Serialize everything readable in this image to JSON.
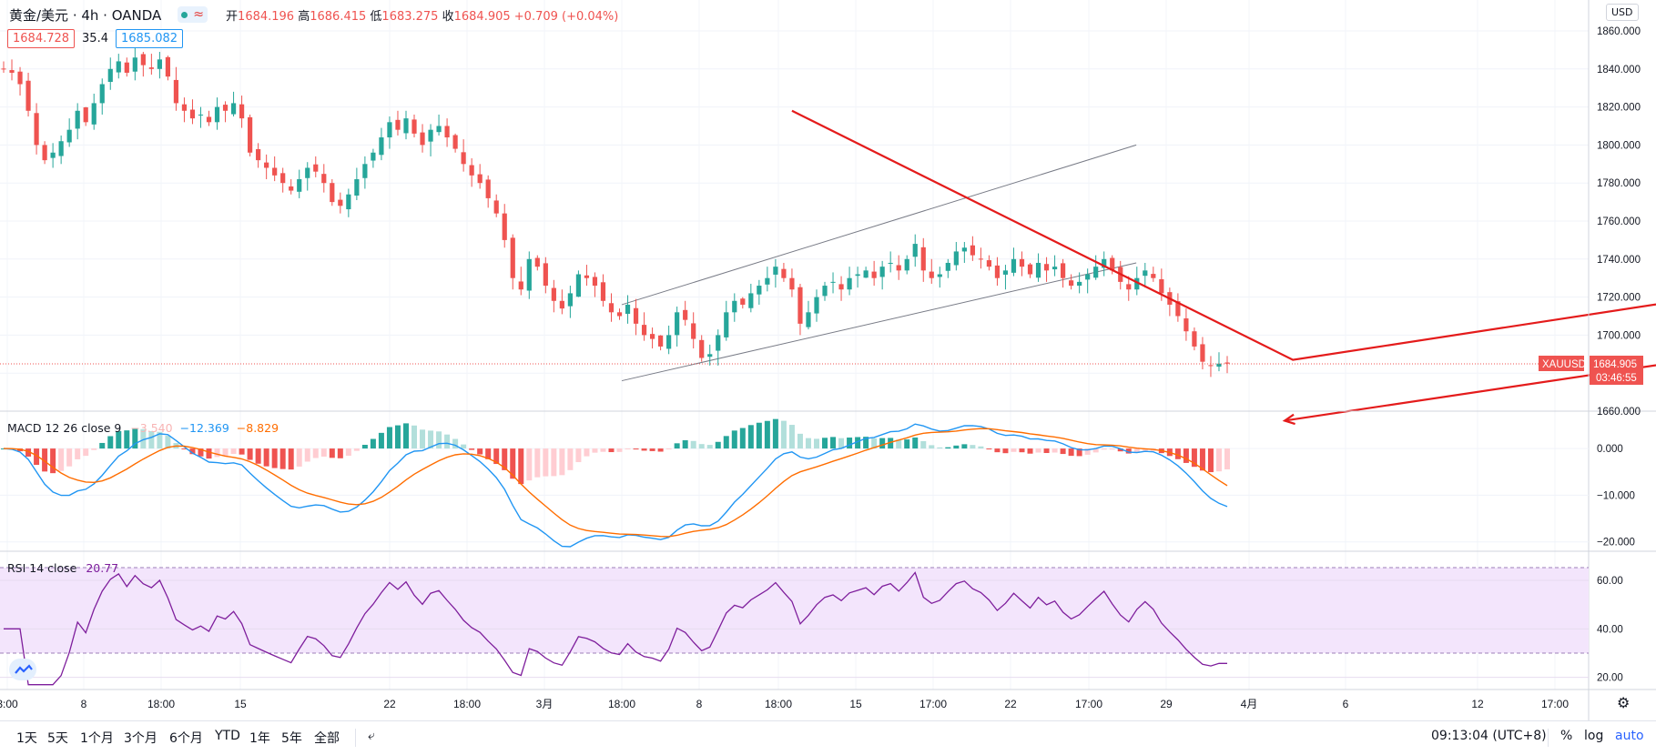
{
  "header": {
    "symbol": "黄金/美元 · 4h · OANDA",
    "ohlc_open_label": "开",
    "ohlc_open": "1684.196",
    "ohlc_high_label": "高",
    "ohlc_high": "1686.415",
    "ohlc_low_label": "低",
    "ohlc_low": "1683.275",
    "ohlc_close_label": "收",
    "ohlc_close": "1684.905",
    "ohlc_change": "+0.709 (+0.04%)",
    "bid": "1684.728",
    "spread": "35.4",
    "ask": "1685.082"
  },
  "currency": "USD",
  "last_price_label": {
    "ticker": "XAUUSD",
    "price": "1684.905",
    "countdown": "03:46:55"
  },
  "price_axis": {
    "ticks": [
      "1860.000",
      "1840.000",
      "1820.000",
      "1800.000",
      "1780.000",
      "1760.000",
      "1740.000",
      "1720.000",
      "1700.000",
      "1680.000",
      "1660.000"
    ]
  },
  "macd": {
    "title": "MACD 12 26 close 9",
    "hist_value": "−3.540",
    "macd_value": "−12.369",
    "signal_value": "−8.829",
    "ticks": [
      "0.000",
      "−10.000",
      "−20.000"
    ]
  },
  "rsi": {
    "title": "RSI 14 close",
    "value": "20.77",
    "ticks": [
      "60.00",
      "40.00",
      "20.00"
    ]
  },
  "time_axis": {
    "labels": [
      "3:00",
      "8",
      "18:00",
      "15",
      "22",
      "18:00",
      "3月",
      "18:00",
      "8",
      "18:00",
      "15",
      "17:00",
      "22",
      "17:00",
      "29",
      "4月",
      "6",
      "12",
      "17:00"
    ]
  },
  "bottom_bar": {
    "ranges": [
      "1天",
      "5天",
      "1个月",
      "3个月",
      "6个月",
      "YTD",
      "1年",
      "5年",
      "全部"
    ],
    "clock": "09:13:04 (UTC+8)",
    "pct": "%",
    "log": "log",
    "auto": "auto"
  },
  "colors": {
    "up": "#26a69a",
    "down": "#ef5350",
    "macd_line": "#2196f3",
    "signal_line": "#ff6d00",
    "rsi_line": "#7e1e9c",
    "rsi_band": "#f3e5fc",
    "trend": "#e41b1b"
  },
  "chart_data": {
    "type": "candlestick",
    "timeframe": "4h",
    "ylim": [
      1655,
      1865
    ],
    "close_path": [
      1840,
      1838,
      1832,
      1818,
      1800,
      1792,
      1796,
      1802,
      1808,
      1818,
      1812,
      1822,
      1832,
      1840,
      1844,
      1838,
      1846,
      1842,
      1840,
      1845,
      1836,
      1822,
      1818,
      1814,
      1816,
      1812,
      1820,
      1818,
      1822,
      1814,
      1796,
      1792,
      1788,
      1784,
      1780,
      1776,
      1782,
      1788,
      1786,
      1780,
      1770,
      1768,
      1774,
      1782,
      1790,
      1796,
      1804,
      1812,
      1808,
      1814,
      1806,
      1800,
      1808,
      1810,
      1804,
      1798,
      1790,
      1784,
      1780,
      1772,
      1764,
      1750,
      1730,
      1724,
      1740,
      1736,
      1726,
      1718,
      1714,
      1722,
      1732,
      1730,
      1726,
      1718,
      1712,
      1710,
      1716,
      1706,
      1700,
      1698,
      1694,
      1700,
      1712,
      1708,
      1698,
      1688,
      1690,
      1700,
      1712,
      1718,
      1716,
      1722,
      1726,
      1730,
      1736,
      1730,
      1724,
      1706,
      1712,
      1720,
      1726,
      1728,
      1724,
      1730,
      1732,
      1734,
      1730,
      1736,
      1738,
      1734,
      1740,
      1748,
      1734,
      1730,
      1732,
      1738,
      1744,
      1746,
      1742,
      1740,
      1736,
      1730,
      1734,
      1740,
      1736,
      1732,
      1738,
      1734,
      1736,
      1730,
      1726,
      1728,
      1732,
      1736,
      1740,
      1734,
      1728,
      1724,
      1730,
      1734,
      1730,
      1722,
      1716,
      1710,
      1702,
      1694,
      1686,
      1684,
      1685,
      1685
    ],
    "bull_channel": {
      "lower": [
        [
          8.0,
          1676
        ],
        [
          31.0,
          1738
        ]
      ],
      "upper": [
        [
          8.0,
          1716
        ],
        [
          31.0,
          1800
        ]
      ]
    },
    "macd": {
      "hist": -3.54,
      "macd": -12.369,
      "signal": -8.829,
      "ylim": [
        -22,
        8
      ]
    },
    "rsi": {
      "period": 14,
      "value": 20.77,
      "upper_band": 70,
      "lower_band": 30,
      "ylim": [
        15,
        72
      ]
    }
  }
}
